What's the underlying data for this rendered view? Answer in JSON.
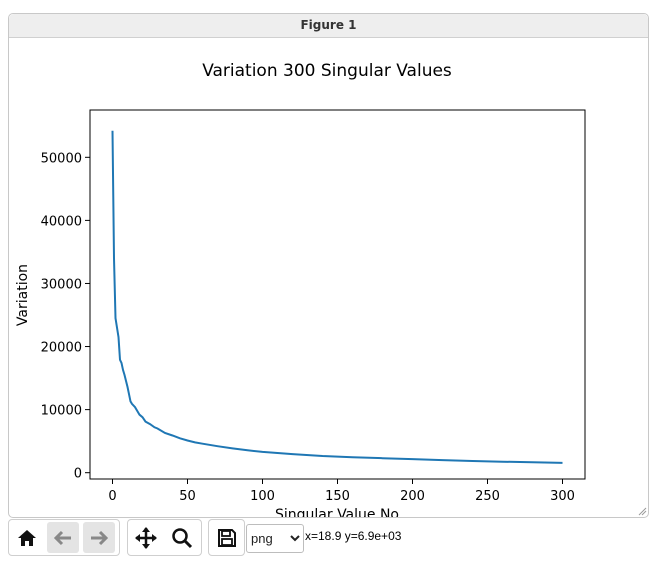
{
  "window": {
    "title": "Figure 1"
  },
  "toolbar": {
    "buttons": [
      {
        "name": "home",
        "icon": "home-icon",
        "enabled": true
      },
      {
        "name": "back",
        "icon": "arrow-left-icon",
        "enabled": false
      },
      {
        "name": "forward",
        "icon": "arrow-right-icon",
        "enabled": false
      },
      {
        "name": "pan",
        "icon": "move-icon",
        "enabled": true
      },
      {
        "name": "zoom",
        "icon": "magnifier-icon",
        "enabled": true
      },
      {
        "name": "save",
        "icon": "floppy-icon",
        "enabled": true
      }
    ],
    "format_selected": "png",
    "coords": "x=18.9 y=6.9e+03"
  },
  "chart_data": {
    "type": "line",
    "title": "Variation 300 Singular Values",
    "xlabel": "Singular Value No",
    "ylabel": "Variation",
    "xlim": [
      -15,
      315
    ],
    "ylim": [
      -1000,
      57500
    ],
    "xticks": [
      0,
      50,
      100,
      150,
      200,
      250,
      300
    ],
    "yticks": [
      0,
      10000,
      20000,
      30000,
      40000,
      50000
    ],
    "grid": false,
    "line_color": "#1f77b4",
    "series": [
      {
        "x": [
          0,
          1,
          2,
          3,
          4,
          5,
          6,
          7,
          8,
          10,
          12,
          13,
          15,
          18,
          20,
          22,
          25,
          28,
          30,
          35,
          40,
          45,
          50,
          55,
          60,
          70,
          80,
          90,
          100,
          120,
          140,
          160,
          180,
          200,
          220,
          240,
          260,
          280,
          300
        ],
        "y": [
          54200,
          34000,
          24500,
          23000,
          21500,
          17900,
          17400,
          16300,
          15500,
          13600,
          11300,
          10900,
          10400,
          9200,
          8800,
          8100,
          7700,
          7200,
          7000,
          6300,
          5900,
          5450,
          5100,
          4800,
          4600,
          4200,
          3850,
          3550,
          3300,
          2950,
          2650,
          2450,
          2300,
          2150,
          2000,
          1850,
          1750,
          1650,
          1550
        ]
      }
    ]
  }
}
